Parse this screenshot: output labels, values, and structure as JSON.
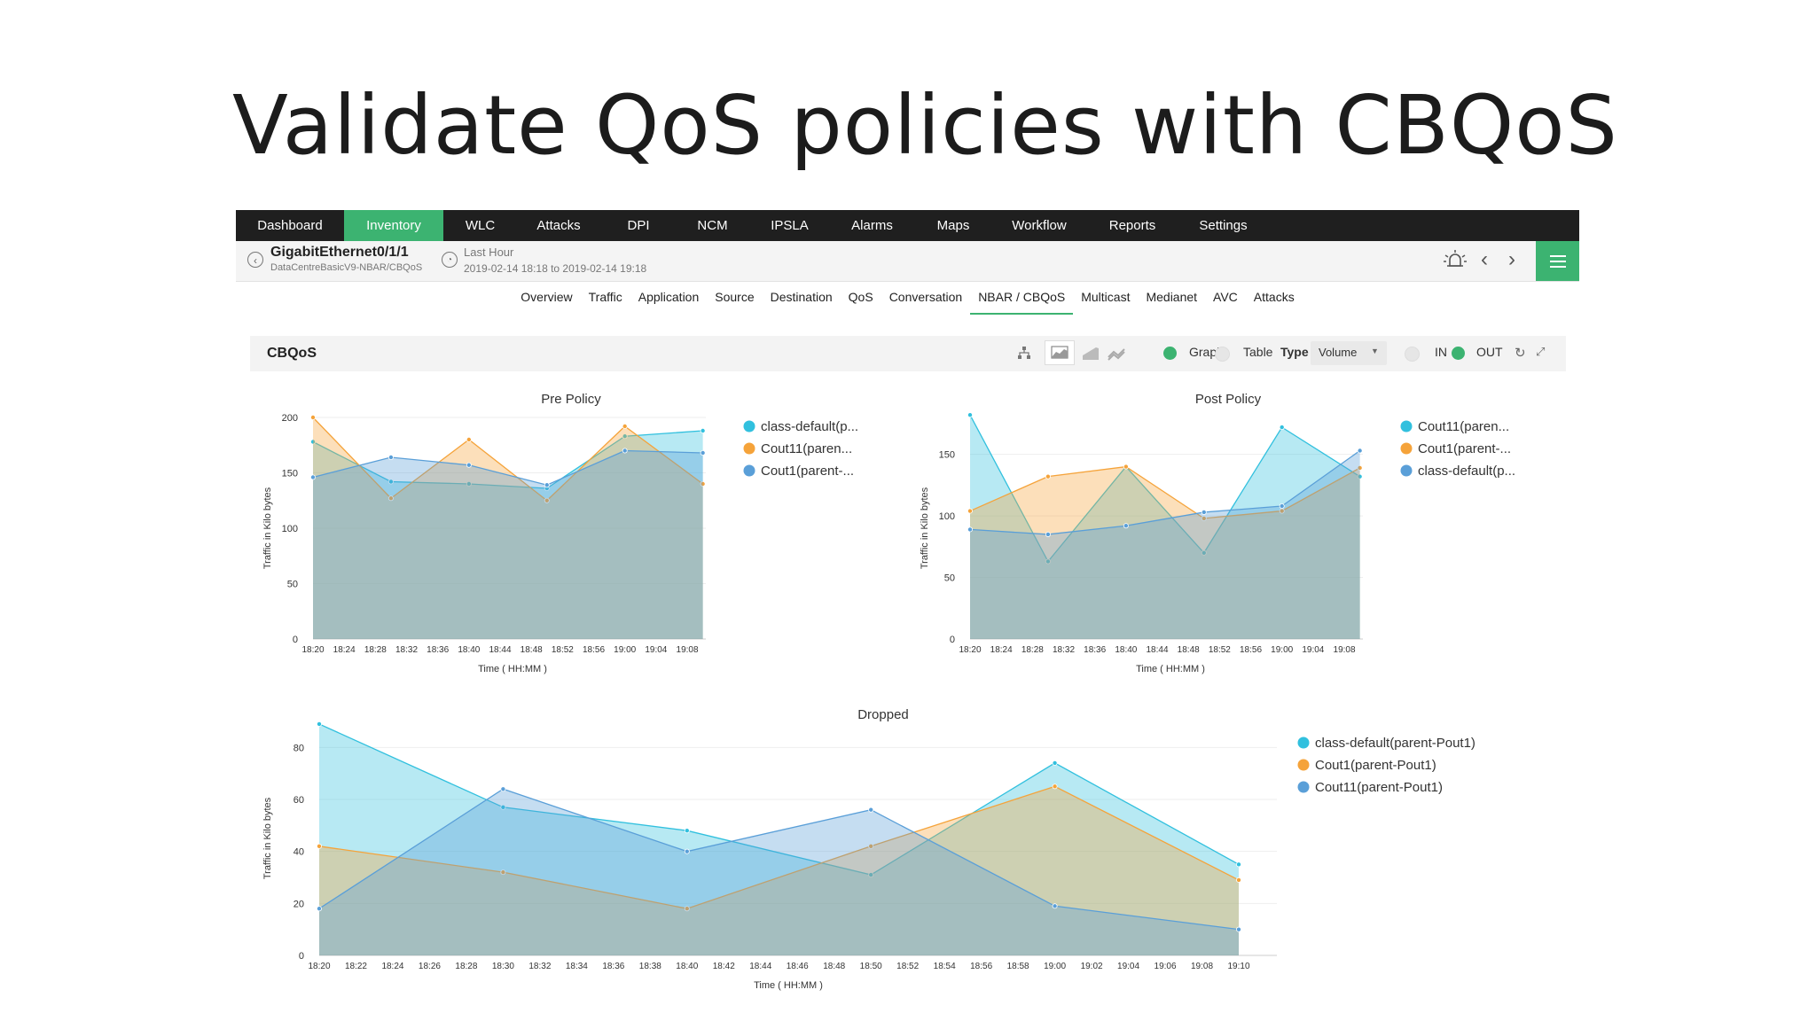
{
  "slide": {
    "title": "Validate QoS policies with CBQoS"
  },
  "nav": {
    "items": [
      {
        "label": "Dashboard",
        "active": false
      },
      {
        "label": "Inventory",
        "active": true
      },
      {
        "label": "WLC",
        "active": false
      },
      {
        "label": "Attacks",
        "active": false
      },
      {
        "label": "DPI",
        "active": false
      },
      {
        "label": "NCM",
        "active": false
      },
      {
        "label": "IPSLA",
        "active": false
      },
      {
        "label": "Alarms",
        "active": false
      },
      {
        "label": "Maps",
        "active": false
      },
      {
        "label": "Workflow",
        "active": false
      },
      {
        "label": "Reports",
        "active": false
      },
      {
        "label": "Settings",
        "active": false
      }
    ]
  },
  "header": {
    "interface_name": "GigabitEthernet0/1/1",
    "interface_path": "DataCentreBasicV9-NBAR/CBQoS",
    "time_label": "Last Hour",
    "time_range": "2019-02-14 18:18 to 2019-02-14 19:18"
  },
  "tabs": [
    {
      "label": "Overview",
      "active": false
    },
    {
      "label": "Traffic",
      "active": false
    },
    {
      "label": "Application",
      "active": false
    },
    {
      "label": "Source",
      "active": false
    },
    {
      "label": "Destination",
      "active": false
    },
    {
      "label": "QoS",
      "active": false
    },
    {
      "label": "Conversation",
      "active": false
    },
    {
      "label": "NBAR / CBQoS",
      "active": true
    },
    {
      "label": "Multicast",
      "active": false
    },
    {
      "label": "Medianet",
      "active": false
    },
    {
      "label": "AVC",
      "active": false
    },
    {
      "label": "Attacks",
      "active": false
    }
  ],
  "toolbar": {
    "title": "CBQoS",
    "graph_label": "Graph",
    "table_label": "Table",
    "type_label": "Type",
    "type_value": "Volume",
    "in_label": "IN",
    "out_label": "OUT",
    "graph_selected": true,
    "out_selected": true
  },
  "colors": {
    "accent": "#3cb371",
    "navbar": "#1f1f1f",
    "cyan": "#31c0de",
    "orange": "#f5a33a",
    "blue": "#5a9fd8"
  },
  "chart_data": [
    {
      "id": "pre-policy",
      "type": "area",
      "title": "Pre Policy",
      "xlabel": "Time ( HH:MM )",
      "ylabel": "Traffic in Kilo bytes",
      "ylim": [
        0,
        200
      ],
      "yticks": [
        0,
        50,
        100,
        150,
        200
      ],
      "x": [
        "18:20",
        "18:24",
        "18:28",
        "18:32",
        "18:36",
        "18:40",
        "18:44",
        "18:48",
        "18:52",
        "18:56",
        "19:00",
        "19:04",
        "19:08"
      ],
      "series": [
        {
          "name": "class-default(p...",
          "color": "#31c0de",
          "points": [
            [
              0,
              178
            ],
            [
              2.5,
              142
            ],
            [
              5,
              140
            ],
            [
              7.5,
              136
            ],
            [
              10,
              183
            ],
            [
              12.5,
              188
            ]
          ]
        },
        {
          "name": "Cout11(paren...",
          "color": "#f5a33a",
          "points": [
            [
              0,
              200
            ],
            [
              2.5,
              127
            ],
            [
              5,
              180
            ],
            [
              7.5,
              125
            ],
            [
              10,
              192
            ],
            [
              12.5,
              140
            ]
          ]
        },
        {
          "name": "Cout1(parent-...",
          "color": "#5a9fd8",
          "points": [
            [
              0,
              146
            ],
            [
              2.5,
              164
            ],
            [
              5,
              157
            ],
            [
              7.5,
              139
            ],
            [
              10,
              170
            ],
            [
              12.5,
              168
            ]
          ]
        }
      ]
    },
    {
      "id": "post-policy",
      "type": "area",
      "title": "Post Policy",
      "xlabel": "Time ( HH:MM )",
      "ylabel": "Traffic in Kilo bytes",
      "ylim": [
        0,
        180
      ],
      "yticks": [
        0,
        50,
        100,
        150
      ],
      "x": [
        "18:20",
        "18:24",
        "18:28",
        "18:32",
        "18:36",
        "18:40",
        "18:44",
        "18:48",
        "18:52",
        "18:56",
        "19:00",
        "19:04",
        "19:08"
      ],
      "series": [
        {
          "name": "Cout11(paren...",
          "color": "#31c0de",
          "points": [
            [
              0,
              182
            ],
            [
              2.5,
              63
            ],
            [
              5,
              140
            ],
            [
              7.5,
              70
            ],
            [
              10,
              172
            ],
            [
              12.5,
              132
            ]
          ]
        },
        {
          "name": "Cout1(parent-...",
          "color": "#f5a33a",
          "points": [
            [
              0,
              104
            ],
            [
              2.5,
              132
            ],
            [
              5,
              140
            ],
            [
              7.5,
              98
            ],
            [
              10,
              104
            ],
            [
              12.5,
              139
            ]
          ]
        },
        {
          "name": "class-default(p...",
          "color": "#5a9fd8",
          "points": [
            [
              0,
              89
            ],
            [
              2.5,
              85
            ],
            [
              5,
              92
            ],
            [
              7.5,
              103
            ],
            [
              10,
              108
            ],
            [
              12.5,
              153
            ]
          ]
        }
      ]
    },
    {
      "id": "dropped",
      "type": "area",
      "title": "Dropped",
      "xlabel": "Time ( HH:MM )",
      "ylabel": "Traffic in Kilo bytes",
      "ylim": [
        0,
        90
      ],
      "yticks": [
        0,
        20,
        40,
        60,
        80
      ],
      "x": [
        "18:20",
        "18:22",
        "18:24",
        "18:26",
        "18:28",
        "18:30",
        "18:32",
        "18:34",
        "18:36",
        "18:38",
        "18:40",
        "18:42",
        "18:44",
        "18:46",
        "18:48",
        "18:50",
        "18:52",
        "18:54",
        "18:56",
        "18:58",
        "19:00",
        "19:02",
        "19:04",
        "19:06",
        "19:08",
        "19:10"
      ],
      "series": [
        {
          "name": "class-default(parent-Pout1)",
          "color": "#31c0de",
          "points": [
            [
              0,
              89
            ],
            [
              10,
              57
            ],
            [
              20,
              48
            ],
            [
              30,
              31
            ],
            [
              40,
              74
            ],
            [
              50,
              35
            ]
          ]
        },
        {
          "name": "Cout1(parent-Pout1)",
          "color": "#f5a33a",
          "points": [
            [
              0,
              42
            ],
            [
              10,
              32
            ],
            [
              20,
              18
            ],
            [
              30,
              42
            ],
            [
              40,
              65
            ],
            [
              50,
              29
            ]
          ]
        },
        {
          "name": "Cout11(parent-Pout1)",
          "color": "#5a9fd8",
          "points": [
            [
              0,
              18
            ],
            [
              10,
              64
            ],
            [
              20,
              40
            ],
            [
              30,
              56
            ],
            [
              40,
              19
            ],
            [
              50,
              10
            ]
          ]
        }
      ]
    }
  ]
}
